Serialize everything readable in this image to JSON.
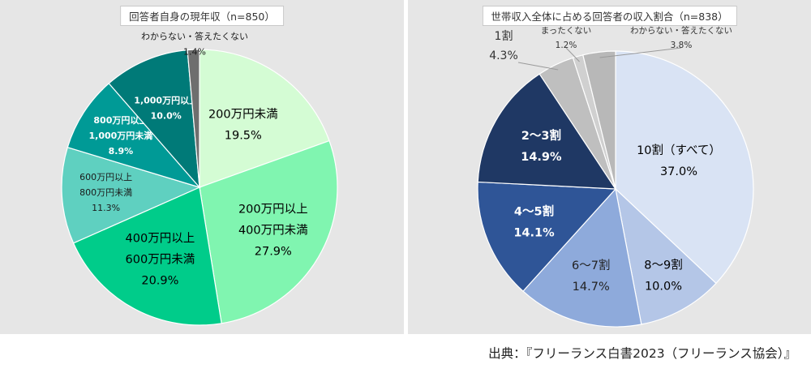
{
  "source": "出典：『フリーランス白書2023（フリーランス協会）』",
  "chart_data": [
    {
      "type": "pie",
      "title": "回答者自身の現年収（n=850）",
      "center": "",
      "slices": [
        {
          "label": [
            "200万円未満"
          ],
          "value": 19.5,
          "display": "19.5%",
          "color": "#d4fcd4",
          "text_color": "#000000"
        },
        {
          "label": [
            "200万円以上",
            "400万円未満"
          ],
          "value": 27.9,
          "display": "27.9%",
          "color": "#80f5b0",
          "text_color": "#000000"
        },
        {
          "label": [
            "400万円以上",
            "600万円未満"
          ],
          "value": 20.9,
          "display": "20.9%",
          "color": "#00cc8a",
          "text_color": "#000000"
        },
        {
          "label": [
            "600万円以上",
            "800万円未満"
          ],
          "value": 11.3,
          "display": "11.3%",
          "color": "#5fd0c0",
          "text_color": "#1a1a1a"
        },
        {
          "label": [
            "800万円以上",
            "1,000万円未満"
          ],
          "value": 8.9,
          "display": "8.9%",
          "color": "#009a96",
          "text_color": "#ffffff"
        },
        {
          "label": [
            "1,000万円以上"
          ],
          "value": 10.0,
          "display": "10.0%",
          "color": "#007a78",
          "text_color": "#ffffff"
        },
        {
          "label": [
            "わからない・答えたくない"
          ],
          "value": 1.4,
          "display": "1.4%",
          "color": "#6e6e6e",
          "text_color": "#1a1a1a"
        }
      ]
    },
    {
      "type": "pie",
      "title": "世帯収入全体に占める回答者の収入割合（n=838）",
      "slices": [
        {
          "label": [
            "10割（すべて）"
          ],
          "value": 37.0,
          "display": "37.0%",
          "color": "#d9e3f4",
          "text_color": "#000000"
        },
        {
          "label": [
            "8〜9割"
          ],
          "value": 10.0,
          "display": "10.0%",
          "color": "#b4c6e7",
          "text_color": "#000000"
        },
        {
          "label": [
            "6〜7割"
          ],
          "value": 14.7,
          "display": "14.7%",
          "color": "#8eaadb",
          "text_color": "#222222"
        },
        {
          "label": [
            "4〜5割"
          ],
          "value": 14.1,
          "display": "14.1%",
          "color": "#2f5597",
          "text_color": "#ffffff"
        },
        {
          "label": [
            "2〜3割"
          ],
          "value": 14.9,
          "display": "14.9%",
          "color": "#1f3864",
          "text_color": "#ffffff"
        },
        {
          "label": [
            "1割"
          ],
          "value": 4.3,
          "display": "4.3%",
          "color": "#bfbfbf",
          "text_color": "#333333"
        },
        {
          "label": [
            "まったくない"
          ],
          "value": 1.2,
          "display": "1.2%",
          "color": "#d0d0d0",
          "text_color": "#333333"
        },
        {
          "label": [
            "わからない・答えたくない"
          ],
          "value": 3.8,
          "display": "3.8%",
          "color": "#b8b8b8",
          "text_color": "#333333"
        }
      ]
    }
  ]
}
